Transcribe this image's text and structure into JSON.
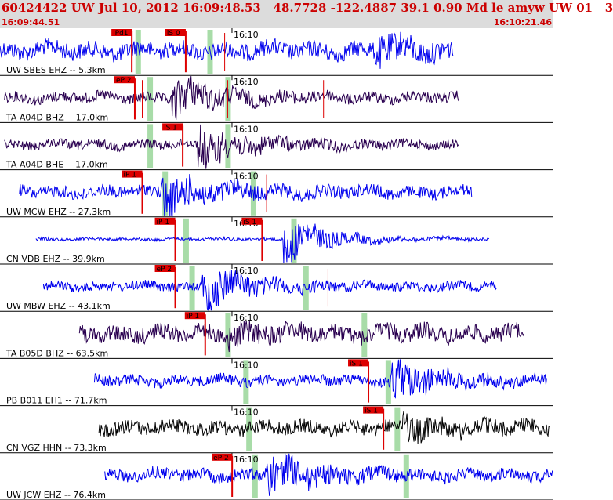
{
  "header": {
    "title": "60424422 UW Jul 10, 2012 16:09:48.53   48.7728 -122.4887 39.1 0.90 Md le amyw UW 01   3",
    "start_time": "16:09:44.51",
    "end_time": "16:10:21.46",
    "minute_tick": "16:10"
  },
  "colors": {
    "blue": "#0000ee",
    "purple": "#2a0050",
    "black": "#000000",
    "pick": "#dd0000",
    "band": "#a8dca8",
    "header": "#dcdcdc",
    "title": "#cc0000"
  },
  "chart_data": {
    "type": "line",
    "x_range_s": [
      0,
      36.95
    ],
    "minute_tick_s": 15.49,
    "traces": [
      {
        "label": "UW SBES EHZ -- 5.3km",
        "color": "blue",
        "data_start_s": 0.0,
        "data_end_s": 30.3,
        "amp": 0.55,
        "burst_s": 25.0,
        "burst_amp": 1.25,
        "bands_s": [
          9.2,
          14.0
        ],
        "picks": [
          {
            "label": "iPd1",
            "t_s": 8.8
          },
          {
            "label": "iS 0",
            "t_s": 12.4
          }
        ],
        "extra_marks_s": [
          15.0
        ]
      },
      {
        "label": "TA A04D BHZ -- 17.0km",
        "color": "purple",
        "data_start_s": 0.3,
        "data_end_s": 30.7,
        "amp": 0.35,
        "burst_s": 11.5,
        "burst_amp": 1.5,
        "bands_s": [
          10.0,
          15.2
        ],
        "picks": [
          {
            "label": "eP 2",
            "t_s": 9.0
          }
        ],
        "extra_marks_s": [
          9.5,
          15.2,
          21.6
        ]
      },
      {
        "label": "TA A04D BHE -- 17.0km",
        "color": "purple",
        "data_start_s": 0.3,
        "data_end_s": 30.7,
        "amp": 0.3,
        "burst_s": 13.2,
        "burst_amp": 1.6,
        "bands_s": [
          10.0,
          15.2
        ],
        "picks": [
          {
            "label": "iS 1",
            "t_s": 12.2
          }
        ],
        "extra_marks_s": []
      },
      {
        "label": "UW MCW EHZ -- 27.3km",
        "color": "blue",
        "data_start_s": 1.3,
        "data_end_s": 31.5,
        "amp": 0.4,
        "burst_s": 10.8,
        "burst_amp": 1.6,
        "bands_s": [
          11.0,
          16.9
        ],
        "picks": [
          {
            "label": "iP 1",
            "t_s": 9.5
          }
        ],
        "extra_marks_s": [
          17.8
        ]
      },
      {
        "label": "CN VDB EHZ -- 39.9km",
        "color": "blue",
        "data_start_s": 2.4,
        "data_end_s": 32.7,
        "amp": 0.1,
        "burst_s": 18.9,
        "burst_amp": 1.5,
        "bands_s": [
          12.4,
          19.6
        ],
        "picks": [
          {
            "label": "iP 1",
            "t_s": 11.7
          },
          {
            "label": "iS 1",
            "t_s": 17.5
          }
        ],
        "extra_marks_s": []
      },
      {
        "label": "UW MBW EHZ -- 43.1km",
        "color": "blue",
        "data_start_s": 2.9,
        "data_end_s": 33.2,
        "amp": 0.3,
        "burst_s": 13.5,
        "burst_amp": 1.6,
        "bands_s": [
          12.8,
          20.4
        ],
        "picks": [
          {
            "label": "eP 2",
            "t_s": 11.7
          }
        ],
        "extra_marks_s": [
          21.9
        ]
      },
      {
        "label": "TA B05D BHZ -- 63.5km",
        "color": "purple",
        "data_start_s": 5.3,
        "data_end_s": 35.0,
        "amp": 0.55,
        "burst_s": 15.2,
        "burst_amp": 0.9,
        "bands_s": [
          15.2,
          24.3
        ],
        "picks": [
          {
            "label": "iP 1",
            "t_s": 13.7
          }
        ],
        "extra_marks_s": []
      },
      {
        "label": "PB B011 EH1 -- 71.7km",
        "color": "blue",
        "data_start_s": 6.3,
        "data_end_s": 36.5,
        "amp": 0.35,
        "burst_s": 26.1,
        "burst_amp": 1.6,
        "bands_s": [
          16.4,
          25.9
        ],
        "picks": [
          {
            "label": "iS 1",
            "t_s": 24.6
          }
        ],
        "extra_marks_s": []
      },
      {
        "label": "CN VGZ HHN -- 73.3km",
        "color": "black",
        "data_start_s": 6.6,
        "data_end_s": 36.7,
        "amp": 0.45,
        "burst_s": 26.9,
        "burst_amp": 1.0,
        "bands_s": [
          16.6,
          26.5
        ],
        "picks": [
          {
            "label": "iS 1",
            "t_s": 25.6
          }
        ],
        "extra_marks_s": []
      },
      {
        "label": "UW JCW EHZ -- 76.4km",
        "color": "blue",
        "data_start_s": 7.0,
        "data_end_s": 36.9,
        "amp": 0.4,
        "burst_s": 17.7,
        "burst_amp": 1.6,
        "bands_s": [
          17.0,
          27.1
        ],
        "picks": [
          {
            "label": "eP 2",
            "t_s": 15.5
          }
        ],
        "extra_marks_s": []
      }
    ]
  }
}
